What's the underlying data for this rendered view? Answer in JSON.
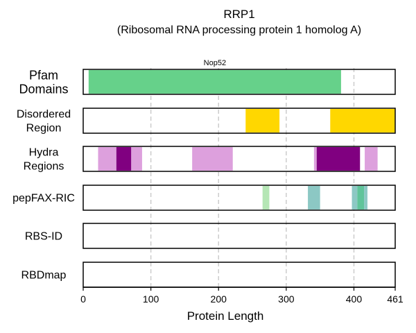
{
  "chart_data": {
    "type": "bar",
    "title": "RRP1",
    "subtitle": "(Ribosomal RNA processing protein 1 homolog A)",
    "xlabel": "Protein Length",
    "xlim": [
      0,
      461
    ],
    "xticks": [
      0,
      100,
      200,
      300,
      400,
      461
    ],
    "grid": "vertical dashed at 100, 200, 300, 400",
    "tracks": [
      {
        "name": "Pfam\nDomains",
        "segments": [
          {
            "start": 8,
            "end": 381,
            "color": "#66d18a",
            "label": "Nop52"
          }
        ]
      },
      {
        "name": "Disordered\nRegion",
        "segments": [
          {
            "start": 240,
            "end": 290,
            "color": "#ffd700"
          },
          {
            "start": 365,
            "end": 461,
            "color": "#ffd700"
          }
        ]
      },
      {
        "name": "Hydra\nRegions",
        "segments": [
          {
            "start": 22,
            "end": 49,
            "color": "#dda0dd"
          },
          {
            "start": 49,
            "end": 71,
            "color": "#800080"
          },
          {
            "start": 71,
            "end": 87,
            "color": "#dda0dd"
          },
          {
            "start": 161,
            "end": 221,
            "color": "#dda0dd"
          },
          {
            "start": 341,
            "end": 345,
            "color": "#dda0dd"
          },
          {
            "start": 345,
            "end": 409,
            "color": "#800080"
          },
          {
            "start": 416,
            "end": 435,
            "color": "#dda0dd"
          }
        ]
      },
      {
        "name": "pepFAX-RIC",
        "segments": [
          {
            "start": 265,
            "end": 275,
            "color": "#b5e6b5"
          },
          {
            "start": 332,
            "end": 350,
            "color": "#8cc8c4"
          },
          {
            "start": 397,
            "end": 405,
            "color": "#8cc8c4"
          },
          {
            "start": 405,
            "end": 415,
            "color": "#5fc49a"
          },
          {
            "start": 415,
            "end": 420,
            "color": "#8cc8c4"
          }
        ]
      },
      {
        "name": "RBS-ID",
        "segments": []
      },
      {
        "name": "RBDmap",
        "segments": []
      }
    ]
  }
}
